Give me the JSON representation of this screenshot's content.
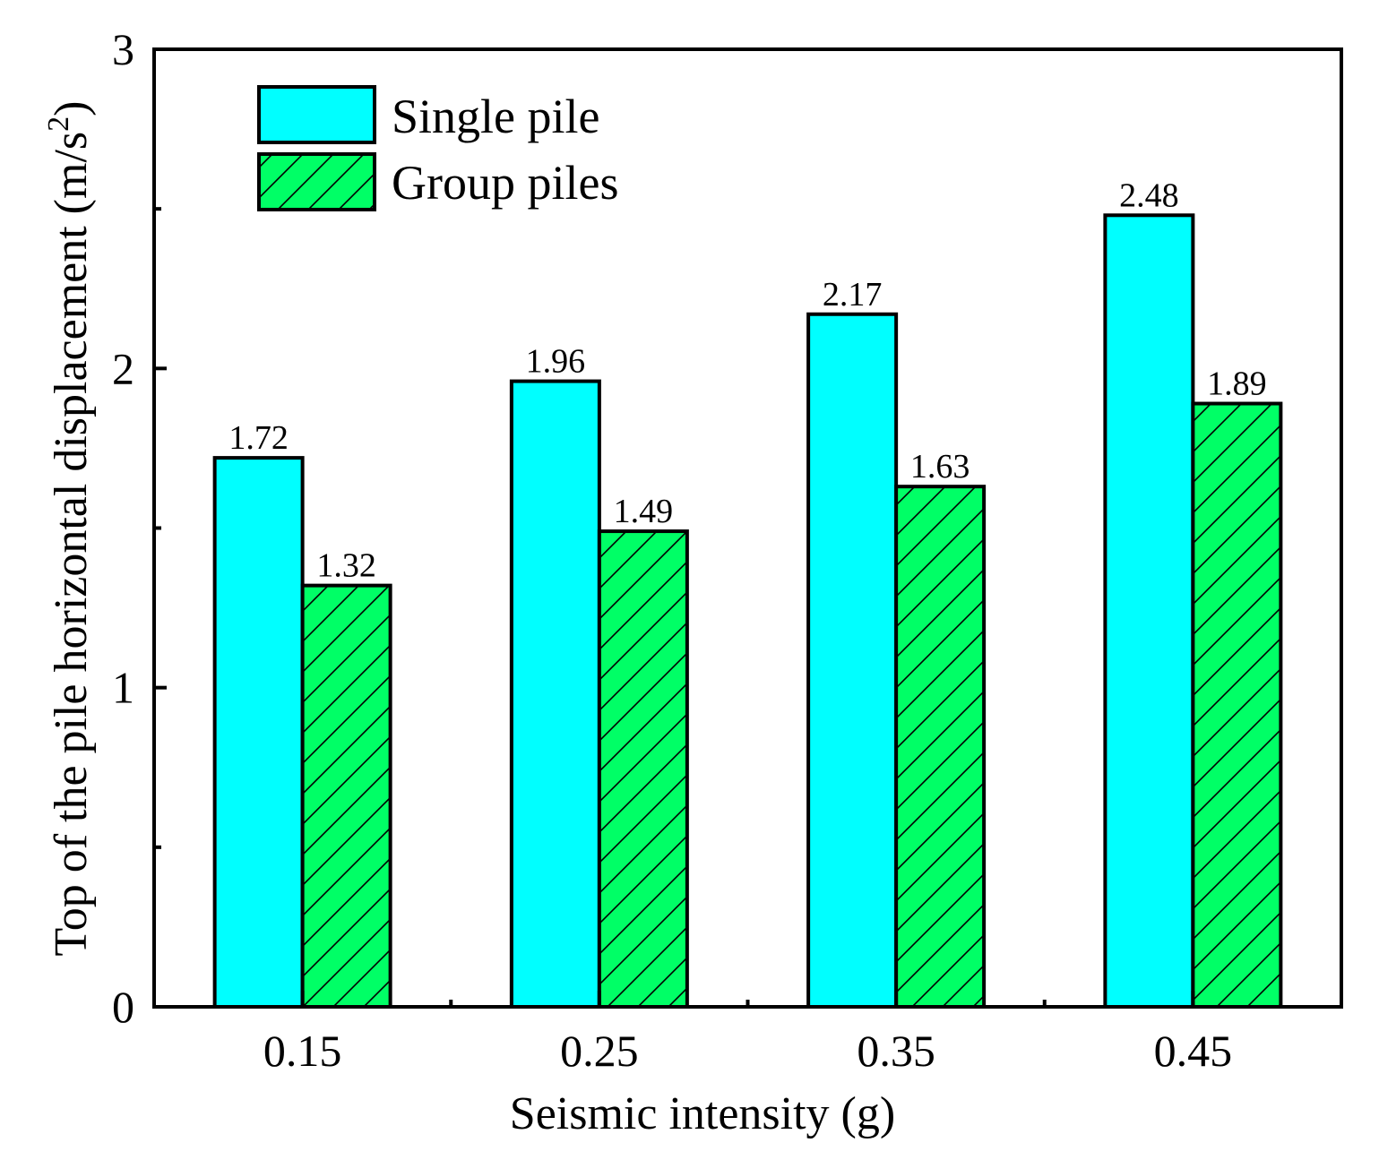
{
  "chart_data": {
    "type": "bar",
    "categories": [
      "0.15",
      "0.25",
      "0.35",
      "0.45"
    ],
    "series": [
      {
        "name": "Single pile",
        "values": [
          1.72,
          1.96,
          2.17,
          2.48
        ],
        "labels": [
          "1.72",
          "1.96",
          "2.17",
          "2.48"
        ],
        "color": "#00ffff",
        "pattern": "none"
      },
      {
        "name": "Group piles",
        "values": [
          1.32,
          1.49,
          1.63,
          1.89
        ],
        "labels": [
          "1.32",
          "1.49",
          "1.63",
          "1.89"
        ],
        "color": "#00ff66",
        "pattern": "diagonal-hatch"
      }
    ],
    "xlabel": "Seismic intensity (g)",
    "ylabel": "Top of the pile horizontal displacement (m/s",
    "ylabel_superscript": "2",
    "ylabel_close": ")",
    "ylim": [
      0,
      3
    ],
    "yticks": [
      "0",
      "1",
      "2",
      "3"
    ],
    "legend_position": "top-left",
    "grid": false
  }
}
